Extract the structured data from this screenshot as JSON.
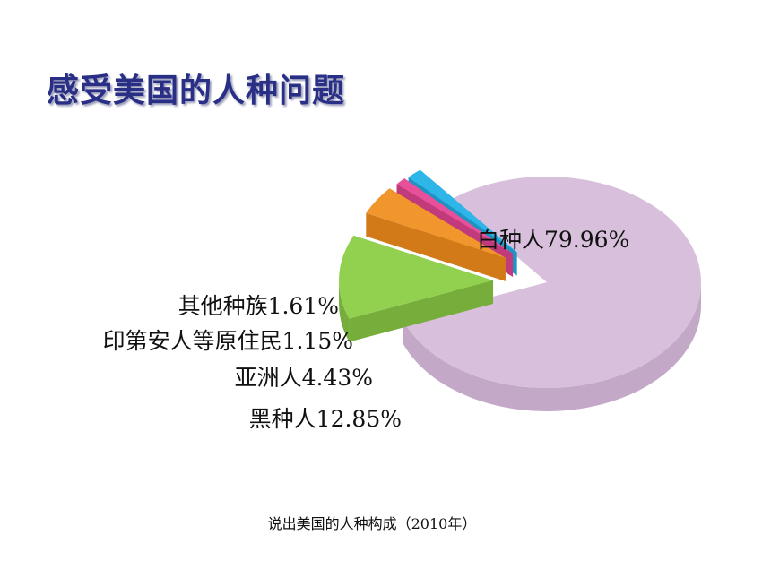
{
  "slide": {
    "title": "感受美国的人种问题",
    "caption": "说出美国的人种构成（2010年）"
  },
  "chart_data": {
    "type": "pie",
    "title": "",
    "labels": [
      "白种人79.96%",
      "黑种人12.85%",
      "亚洲人4.43%",
      "印第安人等原住民1.15%",
      "其他种族1.61%"
    ],
    "categories": [
      "白种人",
      "黑种人",
      "亚洲人",
      "印第安人等原住民",
      "其他种族"
    ],
    "values": [
      79.96,
      12.85,
      4.43,
      1.15,
      1.61
    ],
    "colors": [
      "#d8c0dc",
      "#92d050",
      "#f0962d",
      "#e8509a",
      "#2eb6e8"
    ],
    "side_colors": [
      "#c3a8c8",
      "#77ad3a",
      "#d27a18",
      "#c03a7c",
      "#1c95c4"
    ],
    "exploded": [
      false,
      true,
      true,
      true,
      true
    ],
    "style": "3d"
  }
}
